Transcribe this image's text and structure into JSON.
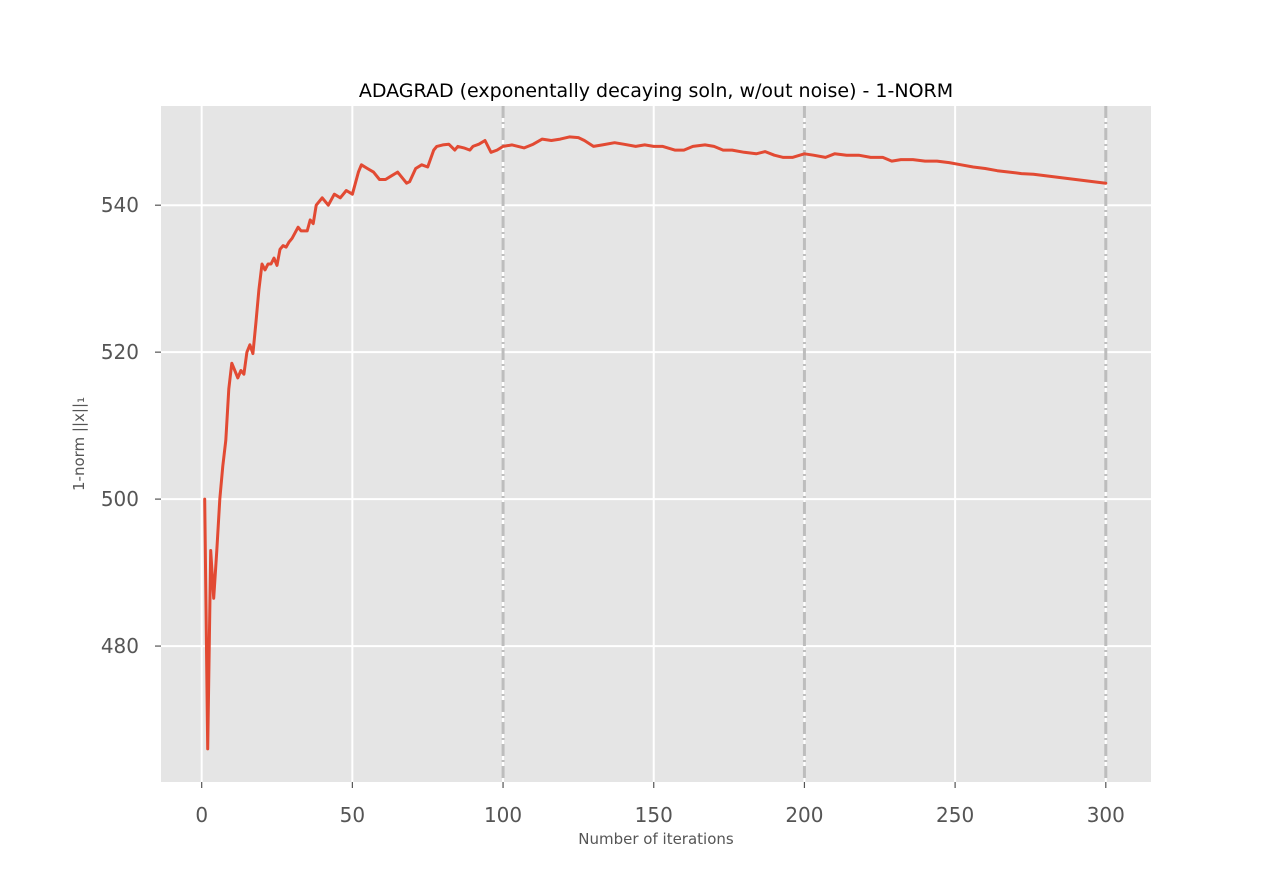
{
  "chart_data": {
    "type": "line",
    "title": "ADAGRAD (exponentally decaying soln, w/out noise) - 1-NORM",
    "xlabel": "Number of iterations",
    "ylabel": "1-norm ||x||₁",
    "xlim": [
      -13.5,
      315
    ],
    "ylim": [
      461.5,
      553.5
    ],
    "xticks": [
      0,
      50,
      100,
      150,
      200,
      250,
      300
    ],
    "yticks": [
      480,
      500,
      520,
      540
    ],
    "grid": true,
    "vlines": [
      100,
      200,
      300
    ],
    "series": [
      {
        "color": "#E24A33",
        "x": [
          1,
          2,
          3,
          4,
          5,
          6,
          7,
          8,
          9,
          10,
          11,
          12,
          13,
          14,
          15,
          16,
          17,
          18,
          19,
          20,
          21,
          22,
          23,
          24,
          25,
          26,
          27,
          28,
          29,
          30,
          32,
          33,
          35,
          36,
          37,
          38,
          40,
          42,
          44,
          46,
          48,
          50,
          52,
          53,
          55,
          57,
          59,
          61,
          63,
          65,
          68,
          69,
          71,
          73,
          75,
          77,
          78,
          80,
          82,
          84,
          85,
          87,
          89,
          90,
          92,
          94,
          96,
          98,
          100,
          103,
          107,
          110,
          113,
          116,
          119,
          122,
          125,
          127,
          130,
          133,
          137,
          140,
          144,
          147,
          150,
          153,
          157,
          160,
          163,
          167,
          170,
          173,
          176,
          180,
          184,
          187,
          190,
          193,
          196,
          200,
          203,
          207,
          210,
          214,
          218,
          222,
          226,
          229,
          232,
          236,
          240,
          244,
          248,
          252,
          256,
          260,
          264,
          268,
          272,
          276,
          280,
          284,
          288,
          292,
          296,
          300
        ],
        "values": [
          500,
          466,
          493,
          486.5,
          493,
          500,
          504.5,
          508,
          515,
          518.5,
          517.5,
          516.5,
          517.5,
          517,
          520,
          521,
          519.8,
          524,
          528.5,
          532,
          531.2,
          532,
          532,
          532.8,
          531.8,
          534,
          534.5,
          534.3,
          535,
          535.5,
          537,
          536.5,
          536.5,
          538,
          537.5,
          540,
          541,
          540,
          541.5,
          541,
          542,
          541.5,
          544.5,
          545.5,
          545,
          544.5,
          543.5,
          543.5,
          544,
          544.5,
          543,
          543.2,
          545,
          545.5,
          545.2,
          547.5,
          548,
          548.2,
          548.3,
          547.5,
          548,
          547.8,
          547.5,
          548,
          548.3,
          548.8,
          547.2,
          547.5,
          548,
          548.2,
          547.8,
          548.3,
          549,
          548.8,
          549,
          549.3,
          549.2,
          548.8,
          548,
          548.2,
          548.5,
          548.3,
          548,
          548.2,
          548,
          548,
          547.5,
          547.5,
          548,
          548.2,
          548,
          547.5,
          547.5,
          547.2,
          547,
          547.3,
          546.8,
          546.5,
          546.5,
          547,
          546.8,
          546.5,
          547,
          546.8,
          546.8,
          546.5,
          546.5,
          546,
          546.2,
          546.2,
          546,
          546,
          545.8,
          545.5,
          545.2,
          545,
          544.7,
          544.5,
          544.3,
          544.2,
          544,
          543.8,
          543.6,
          543.4,
          543.2,
          543
        ]
      }
    ]
  }
}
